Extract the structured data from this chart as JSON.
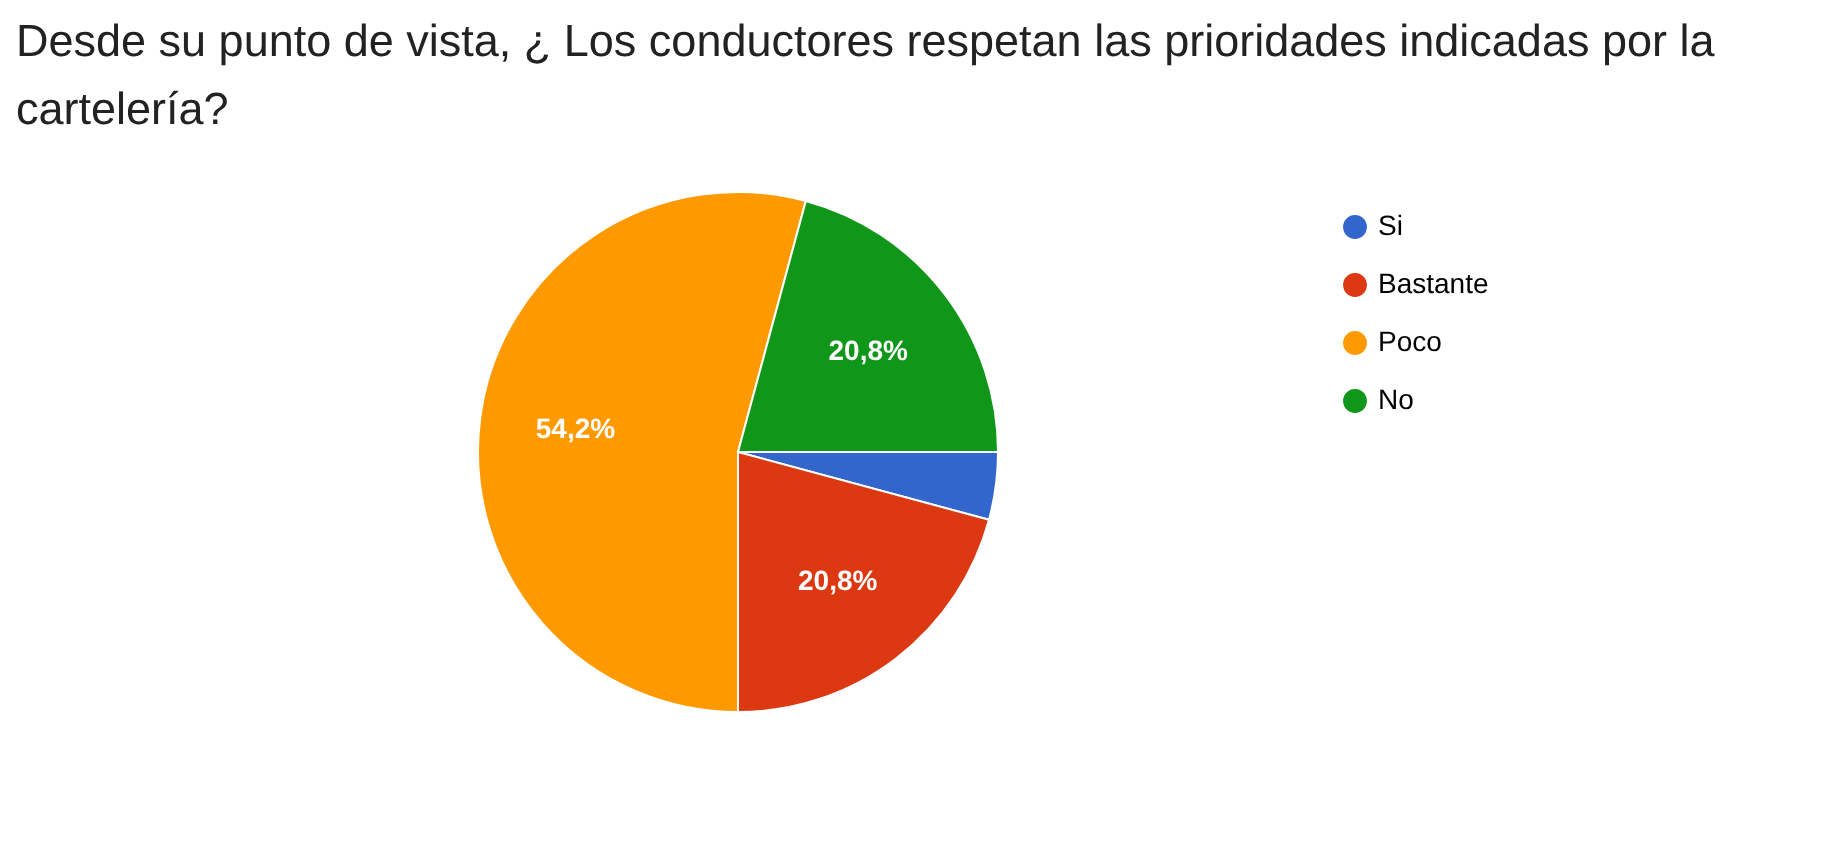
{
  "chart_data": {
    "type": "pie",
    "title": "Desde su punto de vista, ¿ Los conductores respetan las prioridades indicadas por la cartelería?",
    "categories": [
      "Si",
      "Bastante",
      "Poco",
      "No"
    ],
    "values": [
      4.2,
      20.8,
      54.2,
      20.8
    ],
    "value_labels": [
      null,
      "20,8%",
      "54,2%",
      "20,8%"
    ],
    "colors": [
      "#3366cc",
      "#dc3912",
      "#ff9900",
      "#109618"
    ],
    "legend": "right"
  }
}
